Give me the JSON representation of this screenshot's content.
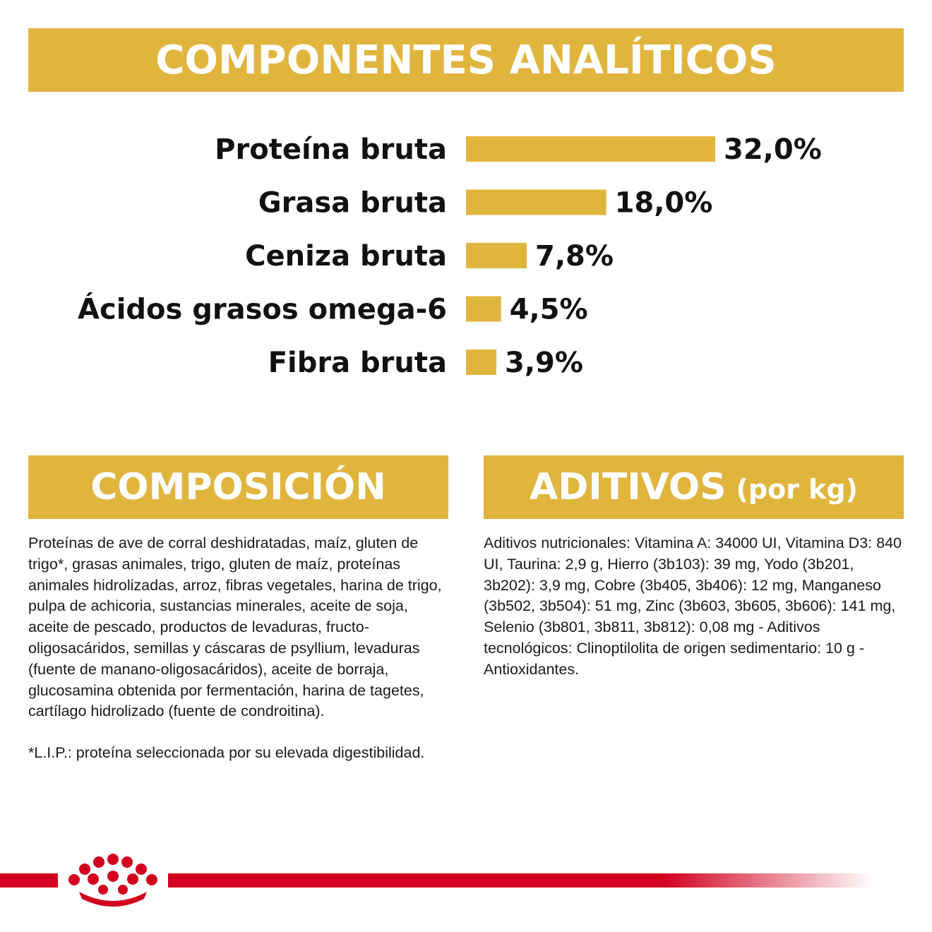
{
  "header": {
    "title": "COMPONENTES ANALÍTICOS"
  },
  "chart_data": {
    "type": "bar",
    "orientation": "horizontal",
    "categories": [
      "Proteína bruta",
      "Grasa bruta",
      "Ceniza bruta",
      "Ácidos grasos omega-6",
      "Fibra bruta"
    ],
    "values": [
      32.0,
      18.0,
      7.8,
      4.5,
      3.9
    ],
    "value_labels": [
      "32,0%",
      "18,0%",
      "7,8%",
      "4,5%",
      "3,9%"
    ],
    "unit": "%",
    "bar_color": "#e0b53e",
    "grid": false
  },
  "composicion": {
    "title": "COMPOSICIÓN",
    "text": "Proteínas de ave de corral deshidratadas, maíz, gluten de trigo*, grasas animales, trigo, gluten de maíz, proteínas animales hidrolizadas, arroz, fibras vegetales, harina de trigo, pulpa de achicoria, sustancias minerales, aceite de soja, aceite de pescado, productos de levaduras, fructo-oligosacáridos, semillas y cáscaras de psyllium, levaduras (fuente de manano-oligosacáridos), aceite de borraja, glucosamina obtenida por fermentación, harina de tagetes, cartílago hidrolizado (fuente de condroitina).",
    "footnote": "*L.I.P.: proteína seleccionada por su elevada digestibilidad."
  },
  "aditivos": {
    "title": "ADITIVOS",
    "title_suffix": "(por kg)",
    "text": "Aditivos nutricionales: Vitamina A: 34000 UI, Vitamina D3: 840 UI, Taurina: 2,9 g, Hierro (3b103): 39 mg, Yodo (3b201, 3b202): 3,9 mg, Cobre (3b405, 3b406): 12 mg, Manganeso (3b502, 3b504): 51 mg, Zinc (3b603, 3b605, 3b606): 141 mg, Selenio (3b801, 3b811, 3b812): 0,08 mg - Aditivos tecnológicos: Clinoptilolita de origen sedimentario: 10 g - Antioxidantes."
  },
  "brand": {
    "logo_icon": "royal-canin-crown-icon",
    "accent_color": "#d2001e",
    "banner_color": "#e0b53e"
  }
}
